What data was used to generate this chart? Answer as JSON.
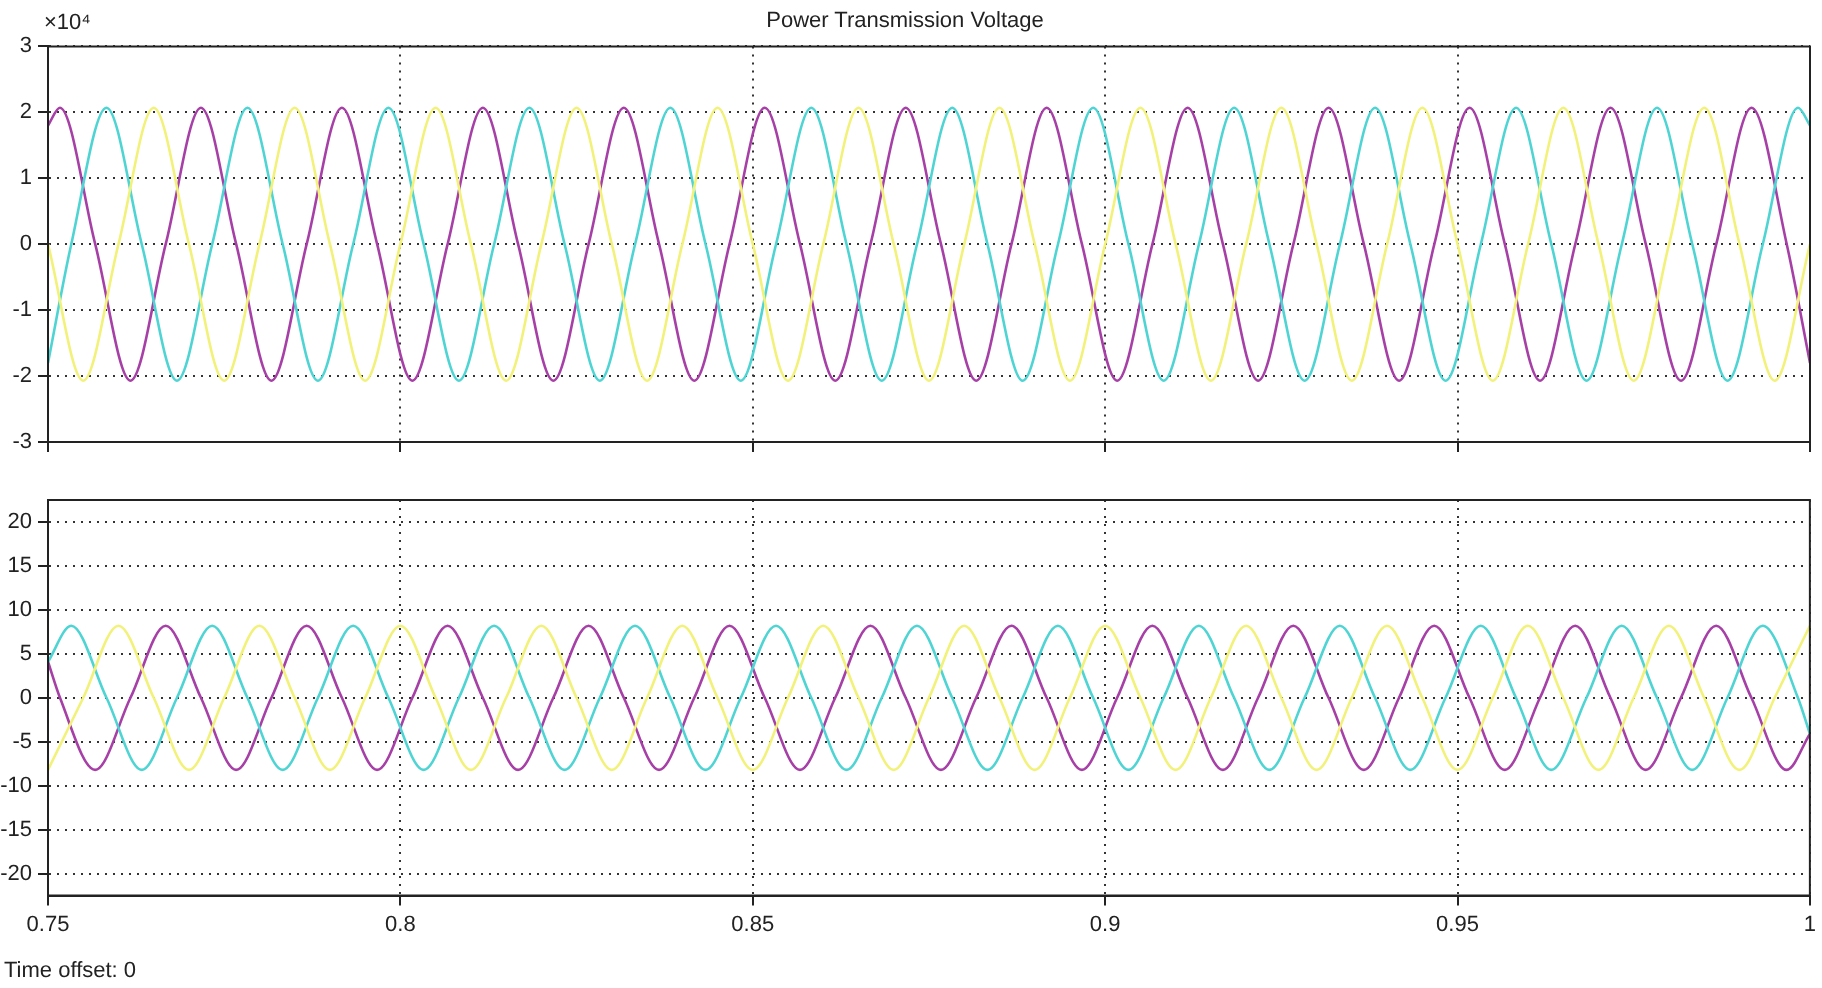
{
  "chart_data": [
    {
      "type": "line",
      "title": "Power Transmission Voltage",
      "annotations": [
        "×10⁴"
      ],
      "xlim": [
        0.75,
        1
      ],
      "xticks": [
        0.75,
        0.8,
        0.85,
        0.9,
        0.95,
        1
      ],
      "ylim": [
        -3,
        3
      ],
      "yticks": [
        -3,
        -2,
        -1,
        0,
        1,
        2,
        3
      ],
      "grid": true,
      "legend": false,
      "tick_labels": "y",
      "marker": "none",
      "line_style": "solid",
      "series": [
        {
          "color": "#f2f27a",
          "x": [
            0.75,
            0.755,
            0.76,
            0.765,
            0.77,
            0.775,
            0.78,
            0.785,
            0.79,
            0.795,
            0.8,
            0.805,
            0.81,
            0.815,
            0.82,
            0.825,
            0.83,
            0.835,
            0.84,
            0.845,
            0.85,
            0.855,
            0.86,
            0.865,
            0.87,
            0.875,
            0.88,
            0.885,
            0.89,
            0.895,
            0.9,
            0.905,
            0.91,
            0.915,
            0.92,
            0.925,
            0.93,
            0.935,
            0.94,
            0.945,
            0.95,
            0.955,
            0.96,
            0.965,
            0.97,
            0.975,
            0.98,
            0.985,
            0.99,
            0.995,
            1
          ],
          "values": [
            0,
            -2.07,
            0,
            2.07,
            0,
            -2.07,
            0,
            2.07,
            0,
            -2.07,
            0,
            2.07,
            0,
            -2.07,
            0,
            2.07,
            0,
            -2.07,
            0,
            2.07,
            0,
            -2.07,
            0,
            2.07,
            0,
            -2.07,
            0,
            2.07,
            0,
            -2.07,
            0,
            2.07,
            0,
            -2.07,
            0,
            2.07,
            0,
            -2.07,
            0,
            2.07,
            0,
            -2.07,
            0,
            2.07,
            0,
            -2.07,
            0,
            2.07,
            0,
            -2.07,
            0
          ]
        },
        {
          "color": "#4fd4d4",
          "x": [
            0.75,
            0.7533,
            0.7583,
            0.7633,
            0.7683,
            0.7733,
            0.7783,
            0.7833,
            0.7883,
            0.7933,
            0.7983,
            0.8033,
            0.8083,
            0.8133,
            0.8183,
            0.8233,
            0.8283,
            0.8333,
            0.8383,
            0.8433,
            0.8483,
            0.8533,
            0.8583,
            0.8633,
            0.8683,
            0.8733,
            0.8783,
            0.8833,
            0.8883,
            0.8933,
            0.8983,
            0.9033,
            0.9083,
            0.9133,
            0.9183,
            0.9233,
            0.9283,
            0.9333,
            0.9383,
            0.9433,
            0.9483,
            0.9533,
            0.9583,
            0.9633,
            0.9683,
            0.9733,
            0.9783,
            0.9833,
            0.9883,
            0.9933,
            0.9983,
            1
          ],
          "values": [
            -1.8,
            0,
            2.07,
            0,
            -2.07,
            0,
            2.07,
            0,
            -2.07,
            0,
            2.07,
            0,
            -2.07,
            0,
            2.07,
            0,
            -2.07,
            0,
            2.07,
            0,
            -2.07,
            0,
            2.07,
            0,
            -2.07,
            0,
            2.07,
            0,
            -2.07,
            0,
            2.07,
            0,
            -2.07,
            0,
            2.07,
            0,
            -2.07,
            0,
            2.07,
            0,
            -2.07,
            0,
            2.07,
            0,
            -2.07,
            0,
            2.07,
            0,
            -2.07,
            0,
            2.07,
            1.8
          ]
        },
        {
          "color": "#a63fa6",
          "x": [
            0.75,
            0.7517,
            0.7567,
            0.7617,
            0.7667,
            0.7717,
            0.7767,
            0.7817,
            0.7867,
            0.7917,
            0.7967,
            0.8017,
            0.8067,
            0.8117,
            0.8167,
            0.8217,
            0.8267,
            0.8317,
            0.8367,
            0.8417,
            0.8467,
            0.8517,
            0.8567,
            0.8617,
            0.8667,
            0.8717,
            0.8767,
            0.8817,
            0.8867,
            0.8917,
            0.8967,
            0.9017,
            0.9067,
            0.9117,
            0.9167,
            0.9217,
            0.9267,
            0.9317,
            0.9367,
            0.9417,
            0.9467,
            0.9517,
            0.9567,
            0.9617,
            0.9667,
            0.9717,
            0.9767,
            0.9817,
            0.9867,
            0.9917,
            0.9967,
            1
          ],
          "values": [
            1.8,
            2.07,
            0,
            -2.07,
            0,
            2.07,
            0,
            -2.07,
            0,
            2.07,
            0,
            -2.07,
            0,
            2.07,
            0,
            -2.07,
            0,
            2.07,
            0,
            -2.07,
            0,
            2.07,
            0,
            -2.07,
            0,
            2.07,
            0,
            -2.07,
            0,
            2.07,
            0,
            -2.07,
            0,
            2.07,
            0,
            -2.07,
            0,
            2.07,
            0,
            -2.07,
            0,
            2.07,
            0,
            -2.07,
            0,
            2.07,
            0,
            -2.07,
            0,
            2.07,
            0,
            -1.8
          ]
        }
      ]
    },
    {
      "type": "line",
      "annotations": [
        "Time offset: 0"
      ],
      "xlim": [
        0.75,
        1
      ],
      "xticks": [
        0.75,
        0.8,
        0.85,
        0.9,
        0.95,
        1
      ],
      "ylim": [
        -22.5,
        22.5
      ],
      "yticks": [
        -20,
        -15,
        -10,
        -5,
        0,
        5,
        10,
        15,
        20
      ],
      "grid": true,
      "legend": false,
      "marker": "none",
      "line_style": "solid",
      "series": [
        {
          "color": "#f2f27a",
          "x": [
            0.75,
            0.755,
            0.76,
            0.765,
            0.77,
            0.775,
            0.78,
            0.785,
            0.79,
            0.795,
            0.8,
            0.805,
            0.81,
            0.815,
            0.82,
            0.825,
            0.83,
            0.835,
            0.84,
            0.845,
            0.85,
            0.855,
            0.86,
            0.865,
            0.87,
            0.875,
            0.88,
            0.885,
            0.89,
            0.895,
            0.9,
            0.905,
            0.91,
            0.915,
            0.92,
            0.925,
            0.93,
            0.935,
            0.94,
            0.945,
            0.95,
            0.955,
            0.96,
            0.965,
            0.97,
            0.975,
            0.98,
            0.985,
            0.99,
            0.995,
            1
          ],
          "values": [
            -8.2,
            0,
            8.2,
            0,
            -8.2,
            0,
            8.2,
            0,
            -8.2,
            0,
            8.2,
            0,
            -8.2,
            0,
            8.2,
            0,
            -8.2,
            0,
            8.2,
            0,
            -8.2,
            0,
            8.2,
            0,
            -8.2,
            0,
            8.2,
            0,
            -8.2,
            0,
            8.2,
            0,
            -8.2,
            0,
            8.2,
            0,
            -8.2,
            0,
            8.2,
            0,
            -8.2,
            0,
            8.2,
            0,
            -8.2,
            0,
            8.2,
            0,
            -8.2,
            0,
            8.2
          ]
        },
        {
          "color": "#4fd4d4",
          "x": [
            0.75,
            0.7533,
            0.7583,
            0.7633,
            0.7683,
            0.7733,
            0.7783,
            0.7833,
            0.7883,
            0.7933,
            0.7983,
            0.8033,
            0.8083,
            0.8133,
            0.8183,
            0.8233,
            0.8283,
            0.8333,
            0.8383,
            0.8433,
            0.8483,
            0.8533,
            0.8583,
            0.8633,
            0.8683,
            0.8733,
            0.8783,
            0.8833,
            0.8883,
            0.8933,
            0.8983,
            0.9033,
            0.9083,
            0.9133,
            0.9183,
            0.9233,
            0.9283,
            0.9333,
            0.9383,
            0.9433,
            0.9483,
            0.9533,
            0.9583,
            0.9633,
            0.9683,
            0.9733,
            0.9783,
            0.9833,
            0.9883,
            0.9933,
            0.9983,
            1
          ],
          "values": [
            4.1,
            8.2,
            0,
            -8.2,
            0,
            8.2,
            0,
            -8.2,
            0,
            8.2,
            0,
            -8.2,
            0,
            8.2,
            0,
            -8.2,
            0,
            8.2,
            0,
            -8.2,
            0,
            8.2,
            0,
            -8.2,
            0,
            8.2,
            0,
            -8.2,
            0,
            8.2,
            0,
            -8.2,
            0,
            8.2,
            0,
            -8.2,
            0,
            8.2,
            0,
            -8.2,
            0,
            8.2,
            0,
            -8.2,
            0,
            8.2,
            0,
            -8.2,
            0,
            8.2,
            0,
            -4.1
          ]
        },
        {
          "color": "#a63fa6",
          "x": [
            0.75,
            0.7517,
            0.7567,
            0.7617,
            0.7667,
            0.7717,
            0.7767,
            0.7817,
            0.7867,
            0.7917,
            0.7967,
            0.8017,
            0.8067,
            0.8117,
            0.8167,
            0.8217,
            0.8267,
            0.8317,
            0.8367,
            0.8417,
            0.8467,
            0.8517,
            0.8567,
            0.8617,
            0.8667,
            0.8717,
            0.8767,
            0.8817,
            0.8867,
            0.8917,
            0.8967,
            0.9017,
            0.9067,
            0.9117,
            0.9167,
            0.9217,
            0.9267,
            0.9317,
            0.9367,
            0.9417,
            0.9467,
            0.9517,
            0.9567,
            0.9617,
            0.9667,
            0.9717,
            0.9767,
            0.9817,
            0.9867,
            0.9917,
            0.9967,
            1
          ],
          "values": [
            4.1,
            0,
            -8.2,
            0,
            8.2,
            0,
            -8.2,
            0,
            8.2,
            0,
            -8.2,
            0,
            8.2,
            0,
            -8.2,
            0,
            8.2,
            0,
            -8.2,
            0,
            8.2,
            0,
            -8.2,
            0,
            8.2,
            0,
            -8.2,
            0,
            8.2,
            0,
            -8.2,
            0,
            8.2,
            0,
            -8.2,
            0,
            8.2,
            0,
            -8.2,
            0,
            8.2,
            0,
            -8.2,
            0,
            8.2,
            0,
            -8.2,
            0,
            8.2,
            0,
            -8.2,
            -4.1
          ]
        }
      ]
    }
  ]
}
